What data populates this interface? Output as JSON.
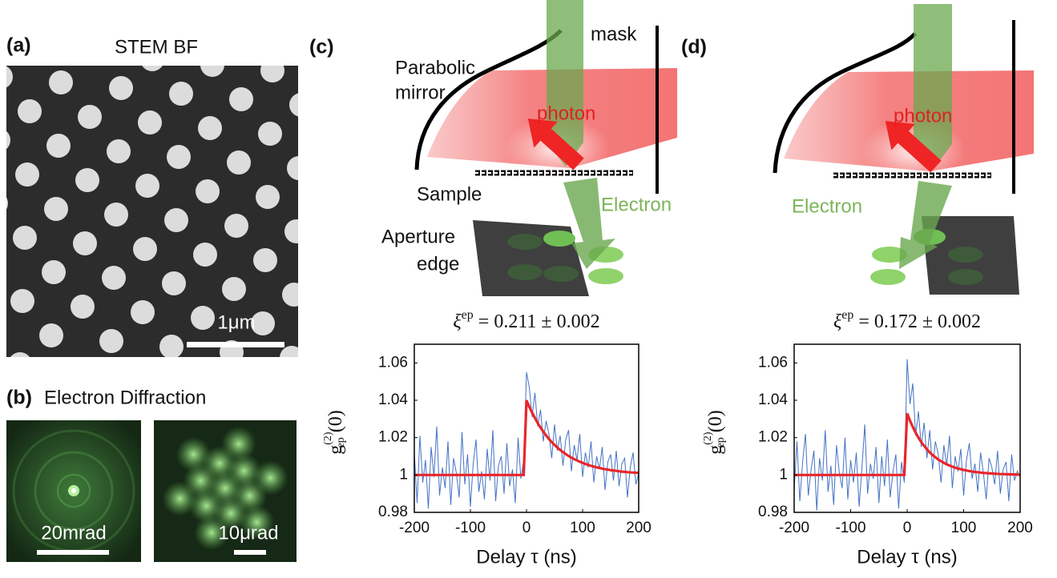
{
  "panels": {
    "a": {
      "label": "(a)",
      "title": "STEM BF",
      "scale_bar": "1μm"
    },
    "b": {
      "label": "(b)",
      "title": "Electron Diffraction",
      "scale_bars": [
        "20mrad",
        "10μrad"
      ]
    },
    "c": {
      "label": "(c)",
      "mirror": [
        "Parabolic",
        "mirror"
      ],
      "mask": "mask",
      "photon": "photon",
      "sample": "Sample",
      "electron": "Electron",
      "aperture": [
        "Aperture",
        "edge"
      ]
    },
    "d": {
      "label": "(d)",
      "photon": "photon",
      "electron": "Electron"
    }
  },
  "chart_data": [
    {
      "type": "line",
      "title": {
        "symbol": "ξ",
        "superscript": "ep",
        "text": "= 0.211 ± 0.002"
      },
      "ylabel": {
        "base": "g",
        "superscript": "(2)",
        "subscript": "ep",
        "argument": "(0)"
      },
      "xlabel": "Delay τ (ns)",
      "xlim": [
        -200,
        200
      ],
      "xticks": [
        -200,
        -100,
        0,
        100,
        200
      ],
      "ylim": [
        0.98,
        1.07
      ],
      "yticks": [
        0.98,
        1,
        1.02,
        1.04,
        1.06
      ],
      "x": [
        -200,
        -195,
        -190,
        -185,
        -180,
        -175,
        -170,
        -165,
        -160,
        -155,
        -150,
        -145,
        -140,
        -135,
        -130,
        -125,
        -120,
        -115,
        -110,
        -105,
        -100,
        -95,
        -90,
        -85,
        -80,
        -75,
        -70,
        -65,
        -60,
        -55,
        -50,
        -45,
        -40,
        -35,
        -30,
        -25,
        -20,
        -15,
        -10,
        -5,
        0,
        5,
        10,
        15,
        20,
        25,
        30,
        35,
        40,
        45,
        50,
        55,
        60,
        65,
        70,
        75,
        80,
        85,
        90,
        95,
        100,
        105,
        110,
        115,
        120,
        125,
        130,
        135,
        140,
        145,
        150,
        155,
        160,
        165,
        170,
        175,
        180,
        185,
        190,
        195,
        200
      ],
      "series": [
        {
          "color": "#4472c4",
          "values": [
            1.012,
            0.985,
            1.021,
            0.996,
            1.008,
            0.982,
            1.015,
            0.999,
            1.026,
            0.989,
            1.004,
            0.993,
            1.018,
            0.984,
            1.009,
            1.001,
            0.988,
            1.023,
            0.995,
            1.011,
            0.983,
            1.006,
            1.019,
            0.991,
            1.002,
            0.987,
            1.014,
            0.997,
            1.024,
            0.986,
            1.005,
            1.01,
            0.99,
            1.017,
            0.994,
            1.003,
            0.985,
            1.02,
            0.998,
            1.008,
            1.055,
            1.047,
            1.031,
            1.044,
            1.026,
            1.035,
            1.018,
            1.029,
            1.022,
            1.009,
            1.027,
            1.013,
            1.021,
            1.005,
            1.019,
            1.024,
            1.002,
            1.016,
            1.008,
            1.022,
            0.999,
            1.012,
            1.004,
            1.018,
            0.996,
            1.01,
            1.003,
            1.015,
            0.992,
            1.007,
            1.011,
            0.997,
            1.013,
            0.994,
            1.006,
            1.009,
            0.988,
            1.004,
            1.012,
            0.995,
            1.001
          ]
        },
        {
          "color": "#e8262a",
          "values": [
            1,
            1,
            1,
            1,
            1,
            1,
            1,
            1,
            1,
            1,
            1,
            1,
            1,
            1,
            1,
            1,
            1,
            1,
            1,
            1,
            1,
            1,
            1,
            1,
            1,
            1,
            1,
            1,
            1,
            1,
            1,
            1,
            1,
            1,
            1,
            1,
            1,
            1,
            1,
            1,
            1.04,
            1.0365,
            1.0334,
            1.0305,
            1.0278,
            1.0254,
            1.0232,
            1.0212,
            1.0193,
            1.0176,
            1.0161,
            1.0147,
            1.0134,
            1.0123,
            1.0112,
            1.0102,
            1.0093,
            1.0085,
            1.0078,
            1.0071,
            1.0065,
            1.0059,
            1.0054,
            1.0049,
            1.0045,
            1.0041,
            1.0038,
            1.0034,
            1.0031,
            1.0029,
            1.0026,
            1.0024,
            1.0022,
            1.002,
            1.0018,
            1.0017,
            1.0015,
            1.0014,
            1.0013,
            1.0012,
            1.0011
          ]
        }
      ]
    },
    {
      "type": "line",
      "title": {
        "symbol": "ξ",
        "superscript": "ep",
        "text": "= 0.172 ± 0.002"
      },
      "ylabel": {
        "base": "g",
        "superscript": "(2)",
        "subscript": "ep",
        "argument": "(0)"
      },
      "xlabel": "Delay τ (ns)",
      "xlim": [
        -200,
        200
      ],
      "xticks": [
        -200,
        -100,
        0,
        100,
        200
      ],
      "ylim": [
        0.98,
        1.07
      ],
      "yticks": [
        0.98,
        1,
        1.02,
        1.04,
        1.06
      ],
      "x": [
        -200,
        -195,
        -190,
        -185,
        -180,
        -175,
        -170,
        -165,
        -160,
        -155,
        -150,
        -145,
        -140,
        -135,
        -130,
        -125,
        -120,
        -115,
        -110,
        -105,
        -100,
        -95,
        -90,
        -85,
        -80,
        -75,
        -70,
        -65,
        -60,
        -55,
        -50,
        -45,
        -40,
        -35,
        -30,
        -25,
        -20,
        -15,
        -10,
        -5,
        0,
        5,
        10,
        15,
        20,
        25,
        30,
        35,
        40,
        45,
        50,
        55,
        60,
        65,
        70,
        75,
        80,
        85,
        90,
        95,
        100,
        105,
        110,
        115,
        120,
        125,
        130,
        135,
        140,
        145,
        150,
        155,
        160,
        165,
        170,
        175,
        180,
        185,
        190,
        195,
        200
      ],
      "series": [
        {
          "color": "#4472c4",
          "values": [
            0.992,
            1.018,
            0.986,
            1.007,
            1.022,
            0.989,
            1.003,
            1.013,
            0.981,
            1.009,
            0.997,
            1.024,
            0.991,
            1.005,
            0.984,
            1.016,
            1.001,
            0.993,
            1.02,
            0.987,
            1.008,
            0.996,
            1.012,
            0.983,
            1.004,
            1.027,
            0.99,
            1.006,
            0.998,
            1.015,
            0.985,
            1.01,
            0.994,
            1.019,
            0.988,
            1.002,
            1.011,
            0.982,
            1.007,
            0.996,
            1.062,
            1.038,
            1.049,
            1.021,
            1.034,
            1.015,
            1.028,
            1.009,
            1.024,
            1.003,
            1.018,
            1.011,
            0.996,
            1.016,
            1.005,
            1.021,
            0.993,
            1.01,
            1.002,
            1.014,
            0.989,
            1.008,
            1.017,
            0.998,
            1.006,
            0.991,
            1.012,
            1.001,
            0.987,
            1.009,
            1.004,
            0.995,
            1.013,
            0.99,
            1.003,
            1.007,
            0.986,
            1.011,
            0.997,
            1.002,
            0.999
          ]
        },
        {
          "color": "#e8262a",
          "values": [
            1,
            1,
            1,
            1,
            1,
            1,
            1,
            1,
            1,
            1,
            1,
            1,
            1,
            1,
            1,
            1,
            1,
            1,
            1,
            1,
            1,
            1,
            1,
            1,
            1,
            1,
            1,
            1,
            1,
            1,
            1,
            1,
            1,
            1,
            1,
            1,
            1,
            1,
            1,
            1,
            1.033,
            1.0291,
            1.0257,
            1.0227,
            1.02,
            1.0176,
            1.0156,
            1.0138,
            1.0121,
            1.0107,
            1.0095,
            1.0083,
            1.0074,
            1.0065,
            1.0057,
            1.0051,
            1.0045,
            1.0039,
            1.0035,
            1.0031,
            1.0027,
            1.0024,
            1.0021,
            1.0019,
            1.0016,
            1.0015,
            1.0013,
            1.0011,
            1.001,
            1.0009,
            1.0008,
            1.0007,
            1.0006,
            1.0005,
            1.0005,
            1.0004,
            1.0004,
            1.0003,
            1.0003,
            1.0002,
            1.0002
          ]
        }
      ]
    }
  ]
}
